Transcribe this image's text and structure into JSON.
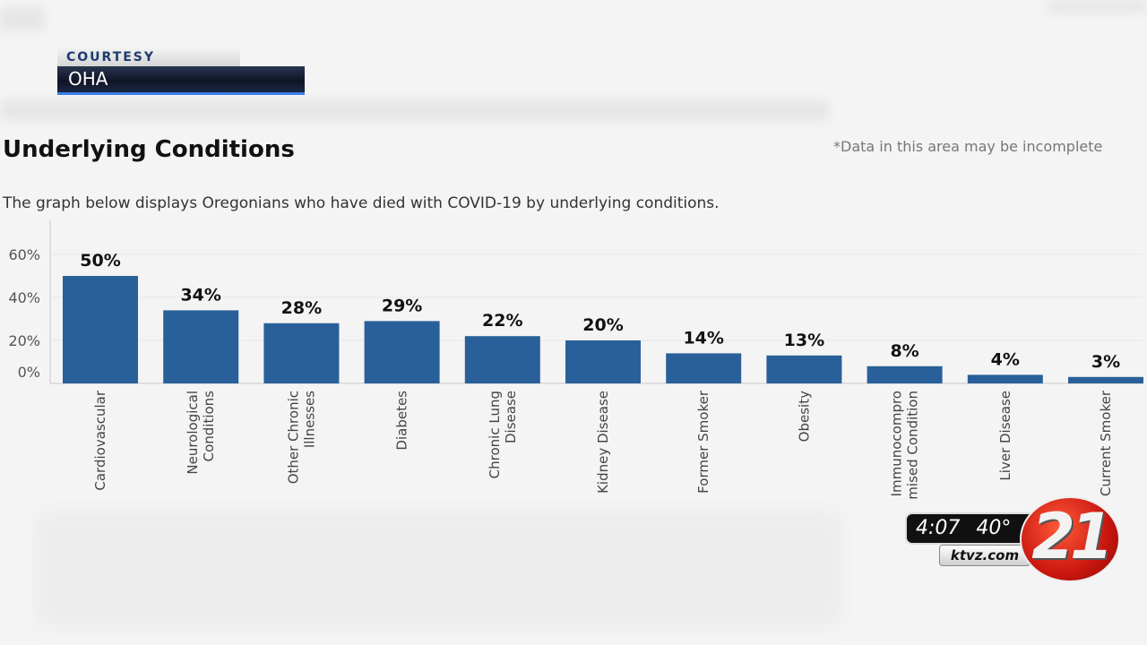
{
  "courtesy": {
    "label": "COURTESY",
    "source": "OHA"
  },
  "header": {
    "title": "Underlying Conditions",
    "disclaimer": "*Data in this area may be incomplete",
    "description": "The graph below displays Oregonians who have died with COVID-19 by underlying conditions."
  },
  "chart_data": {
    "type": "bar",
    "title": "Underlying Conditions",
    "categories": [
      [
        "Cardiovascular"
      ],
      [
        "Neurological",
        "Conditions"
      ],
      [
        "Other Chronic",
        "Illnesses"
      ],
      [
        "Diabetes"
      ],
      [
        "Chronic Lung",
        "Disease"
      ],
      [
        "Kidney Disease"
      ],
      [
        "Former Smoker"
      ],
      [
        "Obesity"
      ],
      [
        "Immunocompro",
        "mised Condition"
      ],
      [
        "Liver Disease"
      ],
      [
        "Current Smoker"
      ]
    ],
    "values": [
      50,
      34,
      28,
      29,
      22,
      20,
      14,
      13,
      8,
      4,
      3
    ],
    "value_labels": [
      "50%",
      "34%",
      "28%",
      "29%",
      "22%",
      "20%",
      "14%",
      "13%",
      "8%",
      "4%",
      "3%"
    ],
    "y_ticks": [
      {
        "value": 60,
        "label": "60%"
      },
      {
        "value": 40,
        "label": "40%"
      },
      {
        "value": 20,
        "label": "20%"
      },
      {
        "value": 0,
        "label": "0%"
      }
    ],
    "ylim": [
      0,
      60
    ],
    "bar_color": "#2a6099"
  },
  "broadcast": {
    "time": "4:07",
    "temperature": "40°",
    "website": "ktvz.com",
    "channel_number": "21"
  }
}
